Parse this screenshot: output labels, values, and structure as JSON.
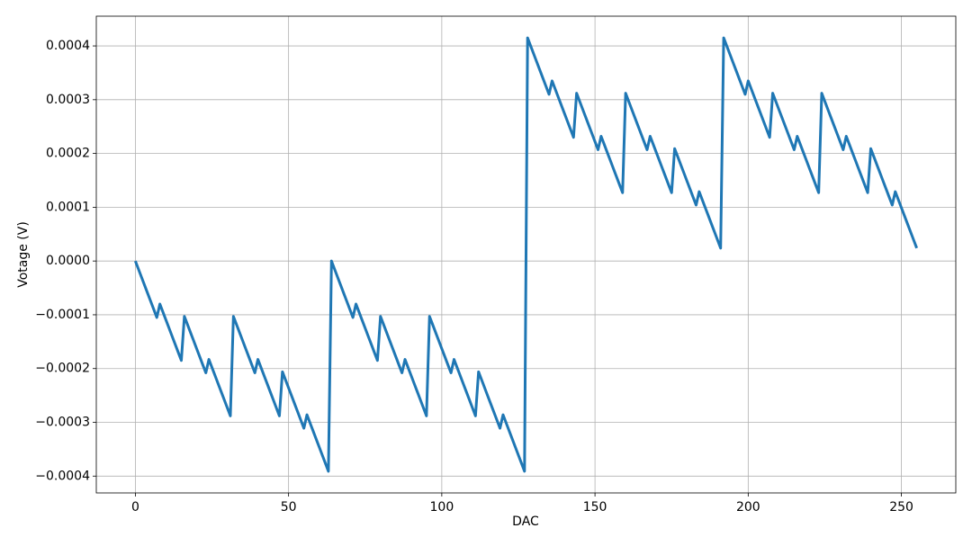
{
  "chart_data": {
    "type": "line",
    "xlabel": "DAC",
    "ylabel": "Votage (V)",
    "color": "#1f77b4",
    "grid": true,
    "xlim": [
      -12.75,
      267.75
    ],
    "xticks": [
      0,
      50,
      100,
      150,
      200,
      250
    ],
    "ylim": [
      -0.0004313,
      0.0004553
    ],
    "yticks": [
      {
        "value": -0.0004,
        "label": "−0.0004"
      },
      {
        "value": -0.0003,
        "label": "−0.0003"
      },
      {
        "value": -0.0002,
        "label": "−0.0002"
      },
      {
        "value": -0.0001,
        "label": "−0.0001"
      },
      {
        "value": 0,
        "label": "0.0000"
      },
      {
        "value": 0.0001,
        "label": "0.0001"
      },
      {
        "value": 0.0002,
        "label": "0.0002"
      },
      {
        "value": 0.0003,
        "label": "0.0003"
      },
      {
        "value": 0.0004,
        "label": "0.0004"
      }
    ],
    "x": [
      0,
      1,
      2,
      3,
      4,
      5,
      6,
      7,
      8,
      9,
      10,
      11,
      12,
      13,
      14,
      15,
      16,
      17,
      18,
      19,
      20,
      21,
      22,
      23,
      24,
      25,
      26,
      27,
      28,
      29,
      30,
      31,
      32,
      33,
      34,
      35,
      36,
      37,
      38,
      39,
      40,
      41,
      42,
      43,
      44,
      45,
      46,
      47,
      48,
      49,
      50,
      51,
      52,
      53,
      54,
      55,
      56,
      57,
      58,
      59,
      60,
      61,
      62,
      63,
      64,
      65,
      66,
      67,
      68,
      69,
      70,
      71,
      72,
      73,
      74,
      75,
      76,
      77,
      78,
      79,
      80,
      81,
      82,
      83,
      84,
      85,
      86,
      87,
      88,
      89,
      90,
      91,
      92,
      93,
      94,
      95,
      96,
      97,
      98,
      99,
      100,
      101,
      102,
      103,
      104,
      105,
      106,
      107,
      108,
      109,
      110,
      111,
      112,
      113,
      114,
      115,
      116,
      117,
      118,
      119,
      120,
      121,
      122,
      123,
      124,
      125,
      126,
      127,
      128,
      129,
      130,
      131,
      132,
      133,
      134,
      135,
      136,
      137,
      138,
      139,
      140,
      141,
      142,
      143,
      144,
      145,
      146,
      147,
      148,
      149,
      150,
      151,
      152,
      153,
      154,
      155,
      156,
      157,
      158,
      159,
      160,
      161,
      162,
      163,
      164,
      165,
      166,
      167,
      168,
      169,
      170,
      171,
      172,
      173,
      174,
      175,
      176,
      177,
      178,
      179,
      180,
      181,
      182,
      183,
      184,
      185,
      186,
      187,
      188,
      189,
      190,
      191,
      192,
      193,
      194,
      195,
      196,
      197,
      198,
      199,
      200,
      201,
      202,
      203,
      204,
      205,
      206,
      207,
      208,
      209,
      210,
      211,
      212,
      213,
      214,
      215,
      216,
      217,
      218,
      219,
      220,
      221,
      222,
      223,
      224,
      225,
      226,
      227,
      228,
      229,
      230,
      231,
      232,
      233,
      234,
      235,
      236,
      237,
      238,
      239,
      240,
      241,
      242,
      243,
      244,
      245,
      246,
      247,
      248,
      249,
      250,
      251,
      252,
      253,
      254,
      255
    ],
    "values": [
      0,
      -1.5e-05,
      -3e-05,
      -4.5e-05,
      -6e-05,
      -7.5e-05,
      -9e-05,
      -0.000105,
      -8e-05,
      -9.5e-05,
      -0.00011,
      -0.000125,
      -0.00014,
      -0.000155,
      -0.00017,
      -0.000185,
      -0.000103,
      -0.000118,
      -0.000133,
      -0.000148,
      -0.000163,
      -0.000178,
      -0.000193,
      -0.000208,
      -0.000183,
      -0.000198,
      -0.000213,
      -0.000228,
      -0.000243,
      -0.000258,
      -0.000273,
      -0.000288,
      -0.000103,
      -0.000118,
      -0.000133,
      -0.000148,
      -0.000163,
      -0.000178,
      -0.000193,
      -0.000208,
      -0.000183,
      -0.000198,
      -0.000213,
      -0.000228,
      -0.000243,
      -0.000258,
      -0.000273,
      -0.000288,
      -0.000206,
      -0.000221,
      -0.000236,
      -0.000251,
      -0.000266,
      -0.000281,
      -0.000296,
      -0.000311,
      -0.000286,
      -0.000301,
      -0.000316,
      -0.000331,
      -0.000346,
      -0.000361,
      -0.000376,
      -0.000391,
      0,
      -1.5e-05,
      -3e-05,
      -4.5e-05,
      -6e-05,
      -7.5e-05,
      -9e-05,
      -0.000105,
      -8e-05,
      -9.5e-05,
      -0.00011,
      -0.000125,
      -0.00014,
      -0.000155,
      -0.00017,
      -0.000185,
      -0.000103,
      -0.000118,
      -0.000133,
      -0.000148,
      -0.000163,
      -0.000178,
      -0.000193,
      -0.000208,
      -0.000183,
      -0.000198,
      -0.000213,
      -0.000228,
      -0.000243,
      -0.000258,
      -0.000273,
      -0.000288,
      -0.000103,
      -0.000118,
      -0.000133,
      -0.000148,
      -0.000163,
      -0.000178,
      -0.000193,
      -0.000208,
      -0.000183,
      -0.000198,
      -0.000213,
      -0.000228,
      -0.000243,
      -0.000258,
      -0.000273,
      -0.000288,
      -0.000206,
      -0.000221,
      -0.000236,
      -0.000251,
      -0.000266,
      -0.000281,
      -0.000296,
      -0.000311,
      -0.000286,
      -0.000301,
      -0.000316,
      -0.000331,
      -0.000346,
      -0.000361,
      -0.000376,
      -0.000391,
      0.000415,
      0.0004,
      0.000385,
      0.00037,
      0.000355,
      0.00034,
      0.000325,
      0.00031,
      0.000335,
      0.00032,
      0.000305,
      0.00029,
      0.000275,
      0.00026,
      0.000245,
      0.00023,
      0.000312,
      0.000297,
      0.000282,
      0.000267,
      0.000252,
      0.000237,
      0.000222,
      0.000207,
      0.000232,
      0.000217,
      0.000202,
      0.000187,
      0.000172,
      0.000157,
      0.000142,
      0.000127,
      0.000312,
      0.000297,
      0.000282,
      0.000267,
      0.000252,
      0.000237,
      0.000222,
      0.000207,
      0.000232,
      0.000217,
      0.000202,
      0.000187,
      0.000172,
      0.000157,
      0.000142,
      0.000127,
      0.000209,
      0.000194,
      0.000179,
      0.000164,
      0.000149,
      0.000134,
      0.000119,
      0.000104,
      0.000129,
      0.000114,
      9.9e-05,
      8.4e-05,
      6.9e-05,
      5.4e-05,
      3.9e-05,
      2.4e-05,
      0.000415,
      0.0004,
      0.000385,
      0.00037,
      0.000355,
      0.00034,
      0.000325,
      0.00031,
      0.000335,
      0.00032,
      0.000305,
      0.00029,
      0.000275,
      0.00026,
      0.000245,
      0.00023,
      0.000312,
      0.000297,
      0.000282,
      0.000267,
      0.000252,
      0.000237,
      0.000222,
      0.000207,
      0.000232,
      0.000217,
      0.000202,
      0.000187,
      0.000172,
      0.000157,
      0.000142,
      0.000127,
      0.000312,
      0.000297,
      0.000282,
      0.000267,
      0.000252,
      0.000237,
      0.000222,
      0.000207,
      0.000232,
      0.000217,
      0.000202,
      0.000187,
      0.000172,
      0.000157,
      0.000142,
      0.000127,
      0.000209,
      0.000194,
      0.000179,
      0.000164,
      0.000149,
      0.000134,
      0.000119,
      0.000104,
      0.000129,
      0.000114,
      9.9e-05,
      8.4e-05,
      6.9e-05,
      5.4e-05,
      3.9e-05,
      2.4e-05
    ]
  }
}
